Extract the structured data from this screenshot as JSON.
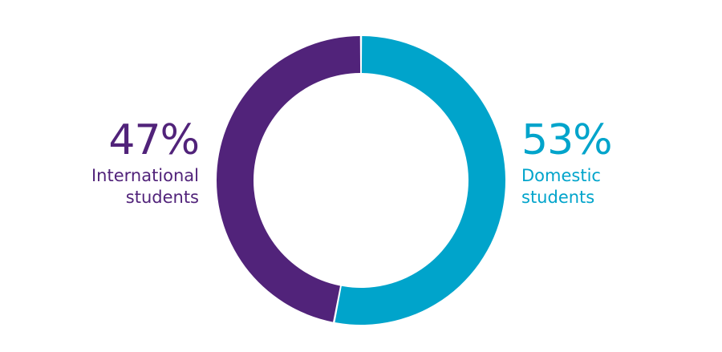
{
  "chart_data": {
    "type": "pie",
    "variant": "donut",
    "start_angle_deg": 0,
    "direction": "clockwise",
    "slices": [
      {
        "value": 53,
        "pct_label": "53%",
        "label_line1": "Domestic",
        "label_line2": "students",
        "color": "#00a4cb"
      },
      {
        "value": 47,
        "pct_label": "47%",
        "label_line1": "International",
        "label_line2": "students",
        "color": "#51237a"
      }
    ]
  }
}
